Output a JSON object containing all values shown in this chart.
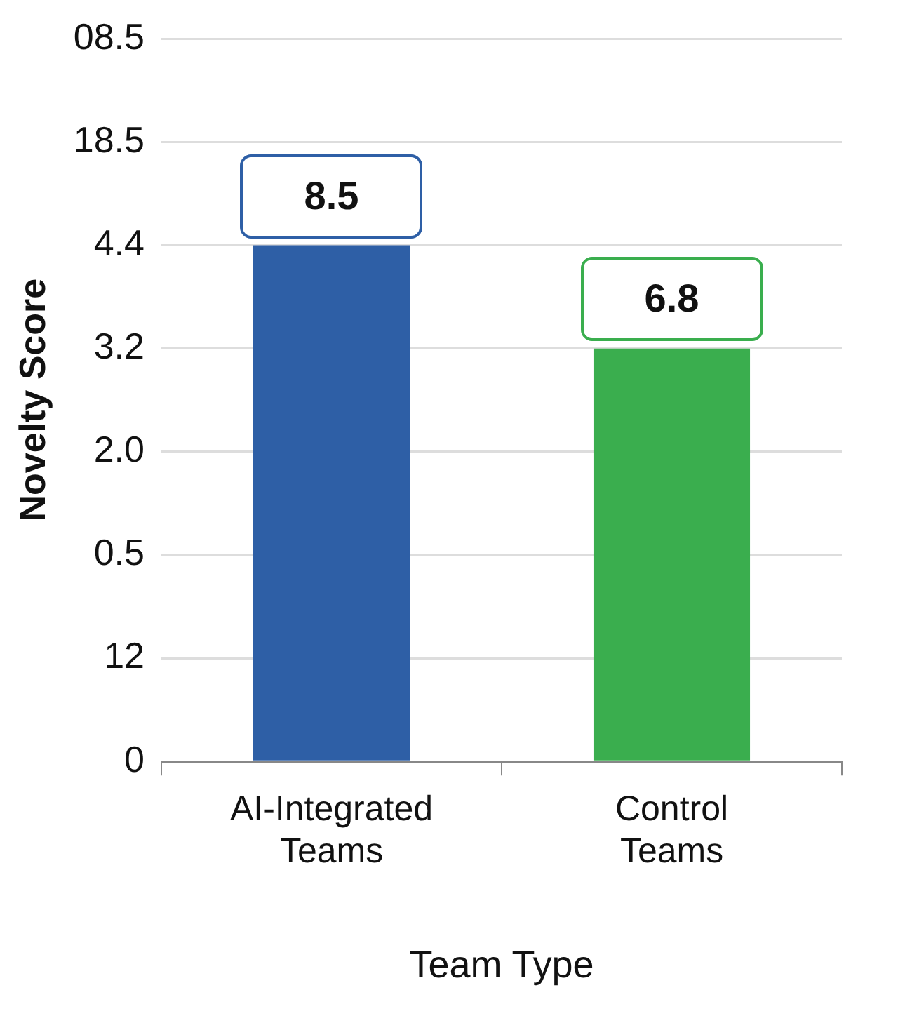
{
  "chart_data": {
    "type": "bar",
    "xlabel": "Team Type",
    "ylabel": "Novelty Score",
    "categories": [
      "AI-Integrated Teams",
      "Control Teams"
    ],
    "values": [
      8.5,
      6.8
    ],
    "colors": [
      "#2e5fa6",
      "#3aae4e"
    ],
    "ylim": [
      0,
      11.9
    ],
    "yticks": [
      {
        "value": 0,
        "label": null
      },
      {
        "value": 1.7,
        "label": null
      },
      {
        "value": 3.4,
        "label": null
      },
      {
        "value": 5.1,
        "label": null
      },
      {
        "value": 6.8,
        "label": null
      },
      {
        "value": 8.5,
        "label": null
      },
      {
        "value": 10.2,
        "label": null
      },
      {
        "value": 11.9,
        "label": null
      }
    ],
    "annotations": [
      "0",
      "12",
      "0.5",
      "2.0",
      "3.2",
      "4.4",
      "18.5",
      "08.5"
    ],
    "grid": "y",
    "legend": false,
    "data_labels": true
  }
}
